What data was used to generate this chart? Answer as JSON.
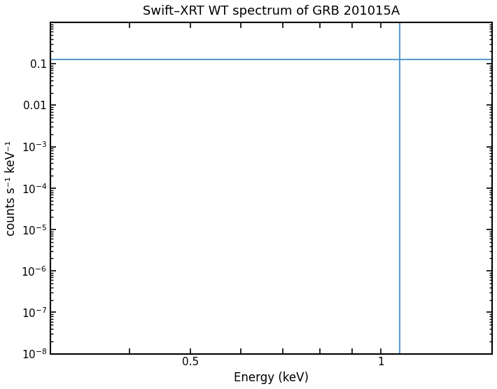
{
  "title": "Swift–XRT WT spectrum of GRB 201015A",
  "xlabel": "Energy (keV)",
  "ylabel": "counts s⁻¹ keV⁻¹",
  "xlim": [
    0.3,
    1.5
  ],
  "ylim": [
    1e-08,
    1.0
  ],
  "horizontal_line_y": 0.13,
  "horizontal_line_color": "#5b9bd5",
  "vertical_line_x": 1.07,
  "vertical_line_color": "#5b9bd5",
  "background_color": "#ffffff",
  "title_fontsize": 13,
  "label_fontsize": 12,
  "tick_fontsize": 11,
  "ytick_labels": [
    "10^{-8}",
    "10^{-7}",
    "10^{-6}",
    "10^{-5}",
    "10^{-4}",
    "10^{-3}",
    "0.01",
    "0.1"
  ],
  "ytick_values": [
    1e-08,
    1e-07,
    1e-06,
    1e-05,
    0.0001,
    0.001,
    0.01,
    0.1
  ],
  "xtick_major": [
    0.3,
    0.4,
    0.5,
    0.6,
    0.7,
    0.8,
    0.9,
    1.0,
    1.5
  ],
  "xtick_show": [
    0.5,
    1.0
  ]
}
